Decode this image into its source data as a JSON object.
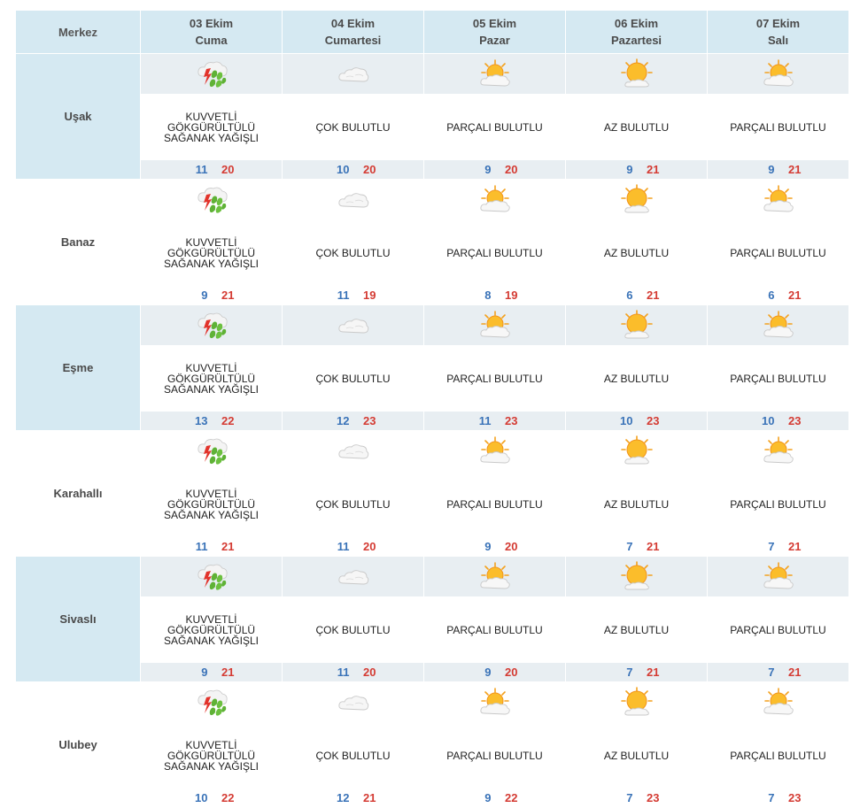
{
  "header": {
    "city_label": "Merkez",
    "days": [
      {
        "date": "03 Ekim",
        "weekday": "Cuma"
      },
      {
        "date": "04 Ekim",
        "weekday": "Cumartesi"
      },
      {
        "date": "05 Ekim",
        "weekday": "Pazar"
      },
      {
        "date": "06 Ekim",
        "weekday": "Pazartesi"
      },
      {
        "date": "07 Ekim",
        "weekday": "Salı"
      }
    ]
  },
  "icon_map": {
    "KUVVETLİ GÖKGÜRÜLTÜLÜ SAĞANAK YAĞIŞLI": "thunderstorm-rain-icon",
    "ÇOK BULUTLU": "cloud-icon",
    "PARÇALI BULUTLU": "partly-cloudy-icon",
    "AZ BULUTLU": "mostly-sunny-icon"
  },
  "colors": {
    "header_bg": "#d5e9f2",
    "alt_row_bg": "#e8eef2",
    "min_temp": "#3a73b8",
    "max_temp": "#d43b33"
  },
  "rows": [
    {
      "city": "Uşak",
      "days": [
        {
          "desc": "KUVVETLİ GÖKGÜRÜLTÜLÜ SAĞANAK YAĞIŞLI",
          "min": "11",
          "max": "20"
        },
        {
          "desc": "ÇOK BULUTLU",
          "min": "10",
          "max": "20"
        },
        {
          "desc": "PARÇALI BULUTLU",
          "min": "9",
          "max": "20"
        },
        {
          "desc": "AZ BULUTLU",
          "min": "9",
          "max": "21"
        },
        {
          "desc": "PARÇALI BULUTLU",
          "min": "9",
          "max": "21"
        }
      ]
    },
    {
      "city": "Banaz",
      "days": [
        {
          "desc": "KUVVETLİ GÖKGÜRÜLTÜLÜ SAĞANAK YAĞIŞLI",
          "min": "9",
          "max": "21"
        },
        {
          "desc": "ÇOK BULUTLU",
          "min": "11",
          "max": "19"
        },
        {
          "desc": "PARÇALI BULUTLU",
          "min": "8",
          "max": "19"
        },
        {
          "desc": "AZ BULUTLU",
          "min": "6",
          "max": "21"
        },
        {
          "desc": "PARÇALI BULUTLU",
          "min": "6",
          "max": "21"
        }
      ]
    },
    {
      "city": "Eşme",
      "days": [
        {
          "desc": "KUVVETLİ GÖKGÜRÜLTÜLÜ SAĞANAK YAĞIŞLI",
          "min": "13",
          "max": "22"
        },
        {
          "desc": "ÇOK BULUTLU",
          "min": "12",
          "max": "23"
        },
        {
          "desc": "PARÇALI BULUTLU",
          "min": "11",
          "max": "23"
        },
        {
          "desc": "AZ BULUTLU",
          "min": "10",
          "max": "23"
        },
        {
          "desc": "PARÇALI BULUTLU",
          "min": "10",
          "max": "23"
        }
      ]
    },
    {
      "city": "Karahallı",
      "days": [
        {
          "desc": "KUVVETLİ GÖKGÜRÜLTÜLÜ SAĞANAK YAĞIŞLI",
          "min": "11",
          "max": "21"
        },
        {
          "desc": "ÇOK BULUTLU",
          "min": "11",
          "max": "20"
        },
        {
          "desc": "PARÇALI BULUTLU",
          "min": "9",
          "max": "20"
        },
        {
          "desc": "AZ BULUTLU",
          "min": "7",
          "max": "21"
        },
        {
          "desc": "PARÇALI BULUTLU",
          "min": "7",
          "max": "21"
        }
      ]
    },
    {
      "city": "Sivaslı",
      "days": [
        {
          "desc": "KUVVETLİ GÖKGÜRÜLTÜLÜ SAĞANAK YAĞIŞLI",
          "min": "9",
          "max": "21"
        },
        {
          "desc": "ÇOK BULUTLU",
          "min": "11",
          "max": "20"
        },
        {
          "desc": "PARÇALI BULUTLU",
          "min": "9",
          "max": "20"
        },
        {
          "desc": "AZ BULUTLU",
          "min": "7",
          "max": "21"
        },
        {
          "desc": "PARÇALI BULUTLU",
          "min": "7",
          "max": "21"
        }
      ]
    },
    {
      "city": "Ulubey",
      "days": [
        {
          "desc": "KUVVETLİ GÖKGÜRÜLTÜLÜ SAĞANAK YAĞIŞLI",
          "min": "10",
          "max": "22"
        },
        {
          "desc": "ÇOK BULUTLU",
          "min": "12",
          "max": "21"
        },
        {
          "desc": "PARÇALI BULUTLU",
          "min": "9",
          "max": "22"
        },
        {
          "desc": "AZ BULUTLU",
          "min": "7",
          "max": "23"
        },
        {
          "desc": "PARÇALI BULUTLU",
          "min": "7",
          "max": "23"
        }
      ]
    }
  ]
}
